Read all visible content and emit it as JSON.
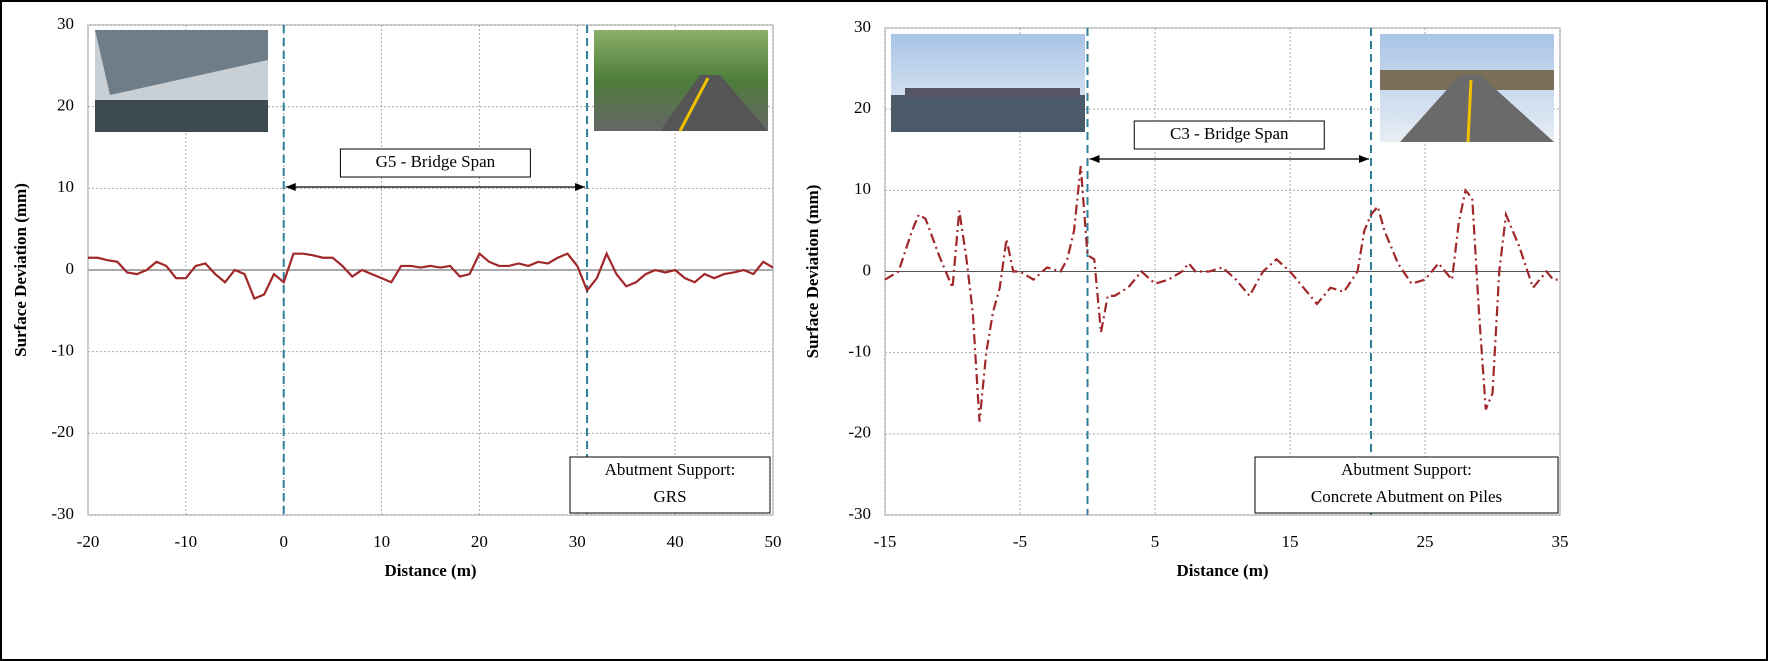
{
  "chart_data": [
    {
      "type": "line",
      "xlabel": "Distance (m)",
      "ylabel": "Surface Deviation (mm)",
      "xlim": [
        -20,
        50
      ],
      "xticks": [
        -20,
        -10,
        0,
        10,
        20,
        30,
        40,
        50
      ],
      "ylim": [
        -30,
        30
      ],
      "yticks": [
        -30,
        -20,
        -10,
        0,
        10,
        20,
        30
      ],
      "grid": true,
      "x": [
        -20,
        -19,
        -18,
        -17,
        -16,
        -15,
        -14,
        -13,
        -12,
        -11,
        -10,
        -9,
        -8,
        -7,
        -6,
        -5,
        -4,
        -3,
        -2,
        -1,
        0,
        1,
        2,
        3,
        4,
        5,
        6,
        7,
        8,
        9,
        10,
        11,
        12,
        13,
        14,
        15,
        16,
        17,
        18,
        19,
        20,
        21,
        22,
        23,
        24,
        25,
        26,
        27,
        28,
        29,
        30,
        31,
        32,
        33,
        34,
        35,
        36,
        37,
        38,
        39,
        40,
        41,
        42,
        43,
        44,
        45,
        46,
        47,
        48,
        49,
        50
      ],
      "series": [
        {
          "color": "#a0282a",
          "dash": "solid",
          "values": [
            1.5,
            1.5,
            1.2,
            1,
            -0.3,
            -0.5,
            0,
            1,
            0.5,
            -1,
            -1,
            0.5,
            0.8,
            -0.5,
            -1.5,
            0,
            -0.5,
            -3.5,
            -3,
            -0.5,
            -1.5,
            2,
            2,
            1.8,
            1.5,
            1.5,
            0.5,
            -0.8,
            0,
            -0.5,
            -1,
            -1.5,
            0.5,
            0.5,
            0.3,
            0.5,
            0.3,
            0.5,
            -0.8,
            -0.5,
            2,
            1,
            0.5,
            0.5,
            0.8,
            0.5,
            1,
            0.8,
            1.5,
            2,
            0.5,
            -2.5,
            -1,
            2,
            -0.5,
            -2,
            -1.5,
            -0.5,
            0,
            -0.3,
            0,
            -1,
            -1.5,
            -0.5,
            -1,
            -0.5,
            -0.3,
            0,
            -0.5,
            1,
            0.3
          ]
        }
      ],
      "vlines": [
        0,
        31
      ],
      "vline_color": "#2f7f9a",
      "span_label": "G5 - Bridge Span",
      "note": [
        "Abutment Support:",
        "GRS"
      ]
    },
    {
      "type": "line",
      "xlabel": "Distance (m)",
      "ylabel": "Surface Deviation (mm)",
      "xlim": [
        -15,
        35
      ],
      "xticks": [
        -15,
        -5,
        5,
        15,
        25,
        35
      ],
      "ylim": [
        -30,
        30
      ],
      "yticks": [
        -30,
        -20,
        -10,
        0,
        10,
        20,
        30
      ],
      "grid": true,
      "x": [
        -15,
        -14,
        -13,
        -12.5,
        -12,
        -11,
        -10,
        -9.5,
        -9,
        -8.5,
        -8,
        -7.5,
        -7,
        -6.5,
        -6,
        -5.5,
        -5,
        -4,
        -3,
        -2,
        -1.5,
        -1,
        -0.5,
        0,
        0.5,
        1,
        1.5,
        2,
        3,
        4,
        5,
        6,
        7,
        7.5,
        8,
        9,
        10,
        11,
        12,
        13,
        14,
        15,
        16,
        17,
        18,
        19,
        20,
        20.5,
        21,
        21.5,
        22,
        23,
        24,
        25,
        26,
        27,
        27.5,
        28,
        28.5,
        29,
        29.5,
        30,
        30.5,
        31,
        32,
        33,
        34,
        34.5,
        35
      ],
      "series": [
        {
          "color": "#a0282a",
          "dash": "dashdot",
          "values": [
            -1,
            0,
            5,
            7,
            6.5,
            2,
            -2,
            7.5,
            2,
            -5,
            -18.5,
            -10,
            -5,
            -2,
            4,
            0,
            0,
            -1,
            0.5,
            0,
            1.5,
            5,
            13,
            2,
            1.5,
            -7.5,
            -3,
            -3,
            -2,
            0,
            -1.5,
            -1,
            0,
            1,
            0,
            0,
            0.5,
            -1,
            -3,
            0,
            1.5,
            0,
            -2,
            -4,
            -2,
            -2.5,
            0,
            5,
            7,
            8,
            5,
            1,
            -1.5,
            -1,
            1,
            -1,
            6,
            10,
            9,
            -5,
            -17,
            -15,
            0,
            7,
            3,
            -2,
            0,
            -1,
            -1
          ]
        }
      ],
      "vlines": [
        0,
        21
      ],
      "vline_color": "#2f7f9a",
      "span_label": "C3 - Bridge Span",
      "note": [
        "Abutment Support:",
        "Concrete Abutment on Piles"
      ]
    }
  ]
}
